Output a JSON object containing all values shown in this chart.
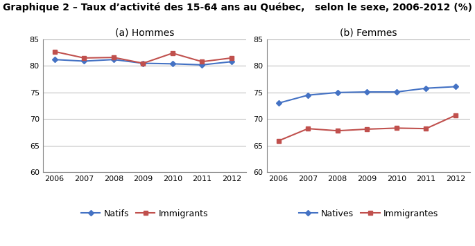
{
  "title_line1": "Graphique 2 – Taux d’activité des 15-64 ans au Québec,",
  "title_line2": "selon le sexe, 2006-2012 (%)",
  "years": [
    2006,
    2007,
    2008,
    2009,
    2010,
    2011,
    2012
  ],
  "hommes_natifs": [
    81.2,
    80.9,
    81.2,
    80.5,
    80.4,
    80.2,
    80.8
  ],
  "hommes_immigrants": [
    82.7,
    81.5,
    81.6,
    80.5,
    82.4,
    80.8,
    81.5
  ],
  "femmes_natives": [
    73.0,
    74.5,
    75.0,
    75.1,
    75.1,
    75.8,
    76.1
  ],
  "femmes_immigrantes": [
    65.9,
    68.2,
    67.8,
    68.1,
    68.3,
    68.2,
    70.7
  ],
  "ylim": [
    60,
    85
  ],
  "yticks": [
    60,
    65,
    70,
    75,
    80,
    85
  ],
  "color_native": "#4472C4",
  "color_immigrant": "#C0504D",
  "panel_a_title": "(a) Hommes",
  "panel_b_title": "(b) Femmes",
  "legend_a": [
    "Natifs",
    "Immigrants"
  ],
  "legend_b": [
    "Natives",
    "Immigrantes"
  ],
  "title_fontsize": 10,
  "axis_fontsize": 8,
  "legend_fontsize": 9,
  "panel_title_fontsize": 10,
  "marker_native": "D",
  "marker_immigrant": "s",
  "linewidth": 1.5,
  "markersize": 4,
  "grid_color": "#C0C0C0",
  "bg_color": "#FFFFFF"
}
